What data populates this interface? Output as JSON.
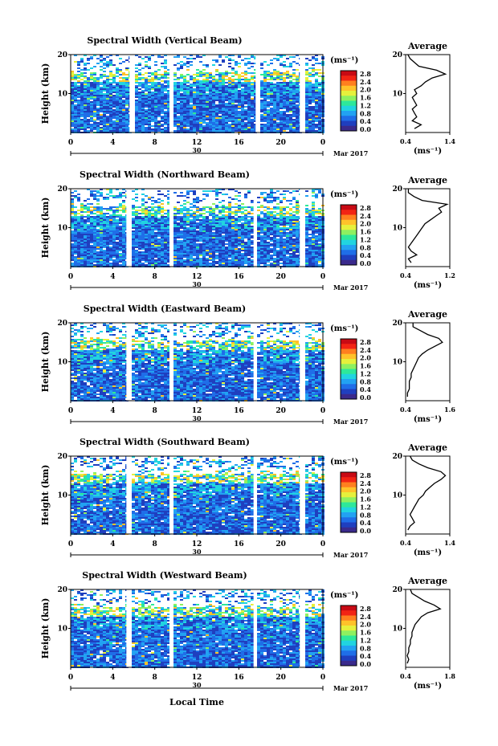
{
  "figure": {
    "xlabel": "Local Time",
    "date_label": "Mar 2017",
    "day_label": "30",
    "colorbar_unit": "(ms⁻¹)",
    "avg_title": "Average",
    "avg_unit": "(ms⁻¹)",
    "ylabel": "Height (km)"
  },
  "colors": {
    "scale": [
      "#3a2a8c",
      "#1f3fbf",
      "#1f6ee8",
      "#22a2f2",
      "#21d4e0",
      "#2ee89a",
      "#8ef060",
      "#e6f03c",
      "#ffc22a",
      "#ff7f1f",
      "#f22414",
      "#c80a14"
    ]
  },
  "chart_data": [
    {
      "type": "heatmap",
      "title": "Spectral Width (Vertical Beam)",
      "x_ticks": [
        "0",
        "4",
        "8",
        "12",
        "16",
        "20",
        "0"
      ],
      "y_ticks": [
        "20",
        "10"
      ],
      "ylim": [
        0,
        20
      ],
      "xlim": [
        0,
        24
      ],
      "data_gaps_hours": [
        [
          5.6,
          6.0
        ],
        [
          9.4,
          9.6
        ],
        [
          17.6,
          17.8
        ],
        [
          21.8,
          22.1
        ]
      ],
      "colorbar_ticks": [
        "2.8",
        "2.4",
        "2.0",
        "1.6",
        "1.2",
        "0.8",
        "0.4",
        "0.0"
      ],
      "average_profile": {
        "xlim": [
          0.4,
          1.4
        ],
        "x_ticks": [
          "0.4",
          "1.4"
        ],
        "y_ticks": [
          "20",
          "10"
        ],
        "height_km": [
          1,
          2,
          3,
          4,
          5,
          6,
          7,
          8,
          9,
          10,
          11,
          12,
          13,
          14,
          15,
          16,
          17,
          18,
          19,
          20
        ],
        "value": [
          0.6,
          0.75,
          0.55,
          0.65,
          0.6,
          0.55,
          0.65,
          0.6,
          0.55,
          0.65,
          0.6,
          0.75,
          0.85,
          1.0,
          1.3,
          1.1,
          0.7,
          0.6,
          0.5,
          0.45
        ]
      }
    },
    {
      "type": "heatmap",
      "title": "Spectral Width (Northward Beam)",
      "x_ticks": [
        "0",
        "4",
        "8",
        "12",
        "16",
        "20",
        "0"
      ],
      "y_ticks": [
        "20",
        "10"
      ],
      "ylim": [
        0,
        20
      ],
      "xlim": [
        0,
        24
      ],
      "data_gaps_hours": [
        [
          5.3,
          5.7
        ],
        [
          9.4,
          9.6
        ],
        [
          17.4,
          17.6
        ],
        [
          21.8,
          22.1
        ]
      ],
      "colorbar_ticks": [
        "2.8",
        "2.4",
        "2.0",
        "1.6",
        "1.2",
        "0.8",
        "0.4",
        "0.0"
      ],
      "average_profile": {
        "xlim": [
          0.4,
          1.2
        ],
        "x_ticks": [
          "0.4",
          "1.2"
        ],
        "y_ticks": [
          "20",
          "10"
        ],
        "height_km": [
          1,
          2,
          3,
          4,
          5,
          6,
          7,
          8,
          9,
          10,
          11,
          12,
          13,
          14,
          15,
          16,
          17,
          18,
          19,
          20
        ],
        "value": [
          0.5,
          0.45,
          0.6,
          0.5,
          0.45,
          0.5,
          0.55,
          0.6,
          0.65,
          0.7,
          0.75,
          0.85,
          0.95,
          1.05,
          1.0,
          1.15,
          0.7,
          0.55,
          0.45,
          0.45
        ]
      }
    },
    {
      "type": "heatmap",
      "title": "Spectral Width (Eastward Beam)",
      "x_ticks": [
        "0",
        "4",
        "8",
        "12",
        "16",
        "20",
        "0"
      ],
      "y_ticks": [
        "20",
        "10"
      ],
      "ylim": [
        0,
        20
      ],
      "xlim": [
        0,
        24
      ],
      "data_gaps_hours": [
        [
          5.3,
          5.7
        ],
        [
          9.4,
          9.6
        ],
        [
          17.4,
          17.6
        ],
        [
          21.8,
          22.1
        ]
      ],
      "colorbar_ticks": [
        "2.8",
        "2.4",
        "2.0",
        "1.6",
        "1.2",
        "0.8",
        "0.4",
        "0.0"
      ],
      "average_profile": {
        "xlim": [
          0.4,
          1.6
        ],
        "x_ticks": [
          "0.4",
          "1.6"
        ],
        "y_ticks": [
          "20",
          "10"
        ],
        "height_km": [
          1,
          2,
          3,
          4,
          5,
          6,
          7,
          8,
          9,
          10,
          11,
          12,
          13,
          14,
          15,
          16,
          17,
          18,
          19,
          20
        ],
        "value": [
          0.45,
          0.45,
          0.5,
          0.5,
          0.5,
          0.55,
          0.55,
          0.6,
          0.65,
          0.7,
          0.75,
          0.85,
          1.0,
          1.2,
          1.4,
          1.3,
          1.0,
          0.8,
          0.6,
          0.6
        ]
      }
    },
    {
      "type": "heatmap",
      "title": "Spectral Width (Southward Beam)",
      "x_ticks": [
        "0",
        "4",
        "8",
        "12",
        "16",
        "20",
        "0"
      ],
      "y_ticks": [
        "20",
        "10"
      ],
      "ylim": [
        0,
        20
      ],
      "xlim": [
        0,
        24
      ],
      "data_gaps_hours": [
        [
          5.3,
          5.7
        ],
        [
          9.4,
          9.6
        ],
        [
          17.4,
          17.6
        ],
        [
          21.8,
          22.1
        ]
      ],
      "colorbar_ticks": [
        "2.8",
        "2.4",
        "2.0",
        "1.6",
        "1.2",
        "0.8",
        "0.4",
        "0.0"
      ],
      "average_profile": {
        "xlim": [
          0.4,
          1.4
        ],
        "x_ticks": [
          "0.4",
          "1.4"
        ],
        "y_ticks": [
          "20",
          "10"
        ],
        "height_km": [
          1,
          2,
          3,
          4,
          5,
          6,
          7,
          8,
          9,
          10,
          11,
          12,
          13,
          14,
          15,
          16,
          17,
          18,
          19,
          20
        ],
        "value": [
          0.45,
          0.5,
          0.6,
          0.55,
          0.5,
          0.55,
          0.6,
          0.65,
          0.7,
          0.8,
          0.85,
          0.95,
          1.05,
          1.2,
          1.3,
          1.2,
          0.9,
          0.7,
          0.55,
          0.5
        ]
      }
    },
    {
      "type": "heatmap",
      "title": "Spectral Width (Westward Beam)",
      "x_ticks": [
        "0",
        "4",
        "8",
        "12",
        "16",
        "20",
        "0"
      ],
      "y_ticks": [
        "20",
        "10"
      ],
      "ylim": [
        0,
        20
      ],
      "xlim": [
        0,
        24
      ],
      "data_gaps_hours": [
        [
          5.3,
          5.7
        ],
        [
          9.4,
          9.6
        ],
        [
          17.4,
          17.6
        ],
        [
          21.8,
          22.1
        ]
      ],
      "colorbar_ticks": [
        "2.8",
        "2.4",
        "2.0",
        "1.6",
        "1.2",
        "0.8",
        "0.4",
        "0.0"
      ],
      "average_profile": {
        "xlim": [
          0.4,
          1.8
        ],
        "x_ticks": [
          "0.4",
          "1.8"
        ],
        "y_ticks": [
          "20",
          "10"
        ],
        "height_km": [
          1,
          2,
          3,
          4,
          5,
          6,
          7,
          8,
          9,
          10,
          11,
          12,
          13,
          14,
          15,
          16,
          17,
          18,
          19,
          20
        ],
        "value": [
          0.45,
          0.5,
          0.45,
          0.5,
          0.5,
          0.55,
          0.55,
          0.6,
          0.6,
          0.65,
          0.7,
          0.8,
          0.9,
          1.1,
          1.5,
          1.3,
          1.0,
          0.8,
          0.6,
          0.55
        ]
      }
    }
  ]
}
